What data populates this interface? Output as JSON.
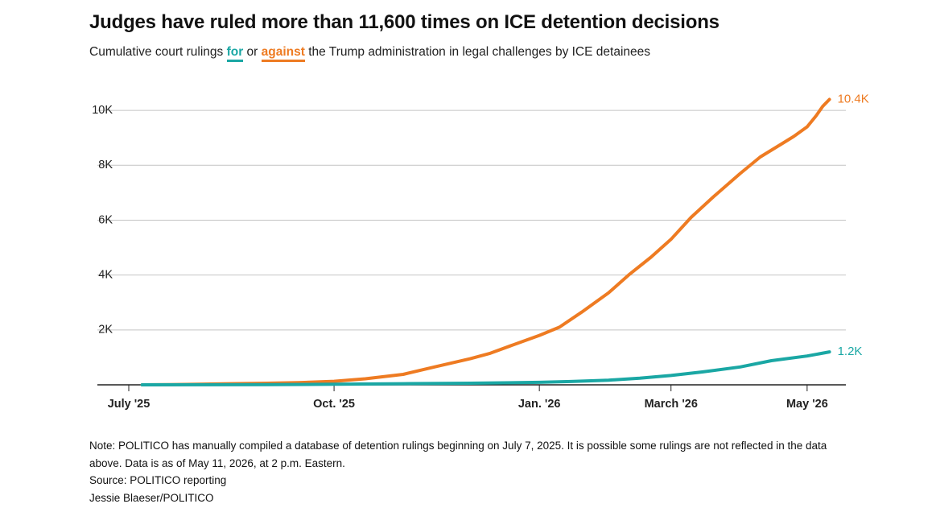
{
  "header": {
    "title": "Judges have ruled more than 11,600 times on ICE detention decisions",
    "subtitle_prefix": "Cumulative court rulings ",
    "subtitle_for": "for",
    "subtitle_or": " or ",
    "subtitle_against": "against",
    "subtitle_suffix": " the Trump administration in legal challenges by ICE detainees"
  },
  "colors": {
    "for": "#1aa7a4",
    "against": "#ee7b22",
    "grid": "#c4c4c4",
    "axis": "#222222"
  },
  "chart_data": {
    "type": "line",
    "title": "Judges have ruled more than 11,600 times on ICE detention decisions",
    "xlabel": "",
    "ylabel": "",
    "x_range": [
      "2025-07-01",
      "2026-05-18"
    ],
    "ylim": [
      0,
      11000
    ],
    "y_ticks": [
      2000,
      4000,
      6000,
      8000,
      10000
    ],
    "y_tick_labels": [
      "2K",
      "4K",
      "6K",
      "8K",
      "10K"
    ],
    "x_ticks": [
      "2025-07-01",
      "2025-10-01",
      "2026-01-01",
      "2026-03-01",
      "2026-05-01"
    ],
    "x_tick_labels": [
      "July '25",
      "Oct. '25",
      "Jan. '26",
      "March '26",
      "May '26"
    ],
    "grid": true,
    "legend": "none",
    "series": [
      {
        "key": "against",
        "end_label": "10.4K",
        "color": "#ee7b22",
        "x": [
          "2025-07-07",
          "2025-07-20",
          "2025-08-01",
          "2025-08-15",
          "2025-09-01",
          "2025-09-15",
          "2025-10-01",
          "2025-10-15",
          "2025-11-01",
          "2025-11-15",
          "2025-12-01",
          "2025-12-10",
          "2025-12-20",
          "2026-01-01",
          "2026-01-10",
          "2026-01-20",
          "2026-02-01",
          "2026-02-10",
          "2026-02-20",
          "2026-03-01",
          "2026-03-10",
          "2026-03-20",
          "2026-04-01",
          "2026-04-10",
          "2026-04-20",
          "2026-04-25",
          "2026-05-01",
          "2026-05-05",
          "2026-05-08",
          "2026-05-11"
        ],
        "y": [
          0,
          10,
          20,
          40,
          60,
          80,
          130,
          220,
          380,
          650,
          950,
          1150,
          1450,
          1800,
          2100,
          2650,
          3350,
          4000,
          4650,
          5300,
          6100,
          6850,
          7700,
          8300,
          8800,
          9050,
          9400,
          9800,
          10150,
          10400
        ]
      },
      {
        "key": "for",
        "end_label": "1.2K",
        "color": "#1aa7a4",
        "x": [
          "2025-07-07",
          "2025-08-01",
          "2025-09-01",
          "2025-10-01",
          "2025-11-01",
          "2025-12-01",
          "2026-01-01",
          "2026-01-15",
          "2026-02-01",
          "2026-02-15",
          "2026-03-01",
          "2026-03-15",
          "2026-04-01",
          "2026-04-15",
          "2026-05-01",
          "2026-05-11"
        ],
        "y": [
          0,
          2,
          8,
          20,
          40,
          60,
          90,
          120,
          170,
          240,
          340,
          470,
          650,
          880,
          1050,
          1200
        ]
      }
    ]
  },
  "notes": {
    "note": "Note: POLITICO has manually compiled a database of detention rulings beginning on July 7, 2025. It is possible some rulings are not reflected in the data above. Data is as of May 11, 2026, at 2 p.m. Eastern.",
    "source": "Source: POLITICO reporting",
    "credit": "Jessie Blaeser/POLITICO"
  }
}
